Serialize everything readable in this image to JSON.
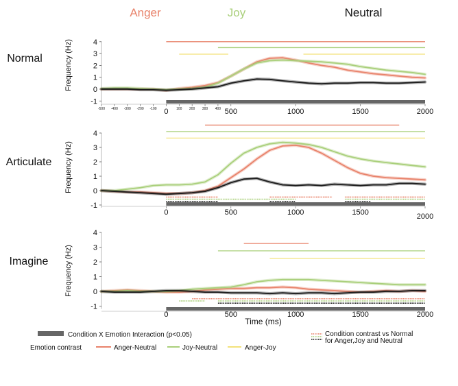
{
  "header": {
    "anger": {
      "label": "Anger",
      "color": "#e8826a"
    },
    "joy": {
      "label": "Joy",
      "color": "#a9cf7a"
    },
    "neutral": {
      "label": "Neutral",
      "color": "#111111"
    }
  },
  "x_axis_title": "Time (ms)",
  "legend": {
    "interaction": "Condition X Emotion Interaction (p<0.05)",
    "emotion_contrast": "Emotion contrast",
    "anger_neutral": "Anger-Neutral",
    "joy_neutral": "Joy-Neutral",
    "anger_joy": "Anger-Joy",
    "normal_contrast_line1": "Condition contrast vs Normal",
    "normal_contrast_line2": "for Anger,Joy and Neutral"
  },
  "colors": {
    "anger": "#e8826a",
    "joy": "#a9cf7a",
    "neutral": "#1a1a1a",
    "anger_joy": "#f3e27a",
    "interaction": "#666666"
  },
  "chart_data": [
    {
      "type": "line",
      "row_label": "Normal",
      "ylabel": "Frequency (Hz)",
      "xlim": [
        -500,
        2000
      ],
      "ylim": [
        -1,
        4
      ],
      "yticks": [
        "-1",
        "0",
        "1",
        "2",
        "3",
        "4"
      ],
      "xtick_labels": [
        "-500",
        "-400",
        "-300",
        "-200",
        "-100",
        "0",
        "100",
        "200",
        "300",
        "400",
        "500",
        "1000",
        "1500",
        "2000"
      ],
      "series": [
        {
          "name": "Anger",
          "x": [
            -500,
            -400,
            -300,
            -200,
            -100,
            0,
            100,
            200,
            300,
            400,
            500,
            600,
            700,
            800,
            900,
            1000,
            1100,
            1200,
            1300,
            1400,
            1500,
            1600,
            1700,
            1800,
            1900,
            2000
          ],
          "y": [
            0.0,
            0.0,
            0.0,
            0.0,
            0.0,
            -0.1,
            0.05,
            0.15,
            0.3,
            0.55,
            1.1,
            1.7,
            2.3,
            2.6,
            2.65,
            2.45,
            2.2,
            2.0,
            1.85,
            1.6,
            1.45,
            1.3,
            1.2,
            1.1,
            1.0,
            0.95
          ]
        },
        {
          "name": "Joy",
          "x": [
            -500,
            -400,
            -300,
            -200,
            -100,
            0,
            100,
            200,
            300,
            400,
            500,
            600,
            700,
            800,
            900,
            1000,
            1100,
            1200,
            1300,
            1400,
            1500,
            1600,
            1700,
            1800,
            1900,
            2000
          ],
          "y": [
            0.05,
            0.1,
            0.1,
            0.05,
            0.0,
            -0.05,
            0.0,
            0.05,
            0.15,
            0.5,
            1.1,
            1.7,
            2.2,
            2.4,
            2.45,
            2.4,
            2.35,
            2.3,
            2.2,
            2.1,
            1.9,
            1.75,
            1.6,
            1.5,
            1.4,
            1.25
          ]
        },
        {
          "name": "Neutral",
          "x": [
            -500,
            -400,
            -300,
            -200,
            -100,
            0,
            100,
            200,
            300,
            400,
            500,
            600,
            700,
            800,
            900,
            1000,
            1100,
            1200,
            1300,
            1400,
            1500,
            1600,
            1700,
            1800,
            1900,
            2000
          ],
          "y": [
            0.0,
            0.0,
            0.0,
            -0.05,
            -0.05,
            -0.1,
            -0.05,
            0.0,
            0.1,
            0.2,
            0.5,
            0.7,
            0.85,
            0.82,
            0.7,
            0.6,
            0.5,
            0.45,
            0.5,
            0.5,
            0.55,
            0.55,
            0.5,
            0.5,
            0.55,
            0.6
          ]
        }
      ],
      "sig_bars": [
        {
          "kind": "anger_neutral",
          "y": 4.0,
          "start": 0,
          "end": 2000
        },
        {
          "kind": "joy_neutral",
          "y": 3.5,
          "start": 400,
          "end": 2000
        },
        {
          "kind": "anger_joy",
          "y": 2.95,
          "start": 100,
          "end": 480
        },
        {
          "kind": "anger_joy",
          "y": 2.95,
          "start": 1060,
          "end": 2000
        }
      ],
      "dotted_bars": [],
      "interaction_bars": [
        {
          "start": 0,
          "end": 2000
        }
      ]
    },
    {
      "type": "line",
      "row_label": "Articulate",
      "ylabel": "Frequency (Hz)",
      "xlim": [
        -500,
        2000
      ],
      "ylim": [
        -1,
        4
      ],
      "yticks": [
        "-1",
        "0",
        "1",
        "2",
        "3",
        "4"
      ],
      "xtick_labels": [
        "0",
        "500",
        "1000",
        "1500",
        "2000"
      ],
      "series": [
        {
          "name": "Anger",
          "x": [
            -500,
            -400,
            -300,
            -200,
            -100,
            0,
            100,
            200,
            300,
            400,
            500,
            600,
            700,
            800,
            900,
            1000,
            1100,
            1200,
            1300,
            1400,
            1500,
            1600,
            1700,
            1800,
            1900,
            2000
          ],
          "y": [
            0.0,
            -0.05,
            -0.1,
            -0.1,
            -0.15,
            -0.2,
            -0.2,
            -0.15,
            0.0,
            0.3,
            0.9,
            1.5,
            2.2,
            2.8,
            3.1,
            3.15,
            3.0,
            2.6,
            2.1,
            1.6,
            1.2,
            1.0,
            0.9,
            0.85,
            0.8,
            0.75
          ]
        },
        {
          "name": "Joy",
          "x": [
            -500,
            -400,
            -300,
            -200,
            -100,
            0,
            100,
            200,
            300,
            400,
            500,
            600,
            700,
            800,
            900,
            1000,
            1100,
            1200,
            1300,
            1400,
            1500,
            1600,
            1700,
            1800,
            1900,
            2000
          ],
          "y": [
            0.0,
            0.0,
            0.1,
            0.2,
            0.35,
            0.4,
            0.4,
            0.45,
            0.6,
            1.1,
            1.9,
            2.6,
            3.0,
            3.25,
            3.35,
            3.3,
            3.2,
            3.0,
            2.7,
            2.4,
            2.2,
            2.05,
            1.95,
            1.85,
            1.75,
            1.65
          ]
        },
        {
          "name": "Neutral",
          "x": [
            -500,
            -400,
            -300,
            -200,
            -100,
            0,
            100,
            200,
            300,
            400,
            500,
            600,
            700,
            800,
            900,
            1000,
            1100,
            1200,
            1300,
            1400,
            1500,
            1600,
            1700,
            1800,
            1900,
            2000
          ],
          "y": [
            0.0,
            -0.05,
            -0.1,
            -0.15,
            -0.2,
            -0.25,
            -0.2,
            -0.15,
            -0.05,
            0.2,
            0.55,
            0.8,
            0.85,
            0.6,
            0.4,
            0.35,
            0.4,
            0.35,
            0.45,
            0.4,
            0.35,
            0.4,
            0.4,
            0.5,
            0.5,
            0.45
          ]
        }
      ],
      "sig_bars": [
        {
          "kind": "anger_neutral",
          "y": 4.55,
          "start": 300,
          "end": 1800
        },
        {
          "kind": "joy_neutral",
          "y": 4.1,
          "start": 0,
          "end": 2000
        },
        {
          "kind": "anger_joy",
          "y": 3.65,
          "start": 0,
          "end": 2000
        }
      ],
      "dotted_bars": [
        {
          "color": "#e8826a",
          "y": -0.45,
          "start": 0,
          "end": 400
        },
        {
          "color": "#e8826a",
          "y": -0.45,
          "start": 800,
          "end": 1280
        },
        {
          "color": "#e8826a",
          "y": -0.45,
          "start": 1380,
          "end": 2000
        },
        {
          "color": "#a9cf7a",
          "y": -0.6,
          "start": 0,
          "end": 1000
        },
        {
          "color": "#a9cf7a",
          "y": -0.6,
          "start": 1380,
          "end": 2000
        },
        {
          "color": "#1a1a1a",
          "y": -0.75,
          "start": 0,
          "end": 400
        },
        {
          "color": "#1a1a1a",
          "y": -0.75,
          "start": 800,
          "end": 1000
        },
        {
          "color": "#1a1a1a",
          "y": -0.75,
          "start": 1380,
          "end": 1580
        }
      ],
      "interaction_bars": [
        {
          "start": 0,
          "end": 2000
        }
      ]
    },
    {
      "type": "line",
      "row_label": "Imagine",
      "ylabel": "Frequency (Hz)",
      "xlim": [
        -500,
        2000
      ],
      "ylim": [
        -1,
        4
      ],
      "yticks": [
        "-1",
        "0",
        "1",
        "2",
        "3",
        "4"
      ],
      "xtick_labels": [
        "0",
        "500",
        "1000",
        "1500",
        "2000"
      ],
      "series": [
        {
          "name": "Anger",
          "x": [
            -500,
            -400,
            -300,
            -200,
            -100,
            0,
            100,
            200,
            300,
            400,
            500,
            600,
            700,
            800,
            900,
            1000,
            1100,
            1200,
            1300,
            1400,
            1500,
            1600,
            1700,
            1800,
            1900,
            2000
          ],
          "y": [
            0.0,
            0.05,
            0.1,
            0.05,
            0.0,
            -0.05,
            -0.05,
            0.0,
            0.1,
            0.15,
            0.2,
            0.2,
            0.25,
            0.25,
            0.3,
            0.25,
            0.15,
            0.1,
            0.05,
            0.0,
            -0.05,
            0.0,
            0.05,
            0.0,
            0.05,
            0.0
          ]
        },
        {
          "name": "Joy",
          "x": [
            -500,
            -400,
            -300,
            -200,
            -100,
            0,
            100,
            200,
            300,
            400,
            500,
            600,
            700,
            800,
            900,
            1000,
            1100,
            1200,
            1300,
            1400,
            1500,
            1600,
            1700,
            1800,
            1900,
            2000
          ],
          "y": [
            0.0,
            0.0,
            0.05,
            0.0,
            0.0,
            0.0,
            0.05,
            0.15,
            0.2,
            0.25,
            0.3,
            0.45,
            0.65,
            0.75,
            0.8,
            0.8,
            0.8,
            0.75,
            0.7,
            0.65,
            0.6,
            0.55,
            0.5,
            0.45,
            0.45,
            0.45
          ]
        },
        {
          "name": "Neutral",
          "x": [
            -500,
            -400,
            -300,
            -200,
            -100,
            0,
            100,
            200,
            300,
            400,
            500,
            600,
            700,
            800,
            900,
            1000,
            1100,
            1200,
            1300,
            1400,
            1500,
            1600,
            1700,
            1800,
            1900,
            2000
          ],
          "y": [
            0.0,
            -0.05,
            -0.05,
            -0.05,
            0.0,
            0.05,
            0.05,
            0.0,
            -0.05,
            -0.05,
            -0.1,
            -0.1,
            -0.1,
            -0.15,
            -0.1,
            -0.15,
            -0.1,
            -0.1,
            -0.15,
            -0.1,
            -0.05,
            -0.05,
            0.0,
            0.0,
            0.05,
            0.05
          ]
        }
      ],
      "sig_bars": [
        {
          "kind": "anger_neutral",
          "y": 3.25,
          "start": 600,
          "end": 1100
        },
        {
          "kind": "joy_neutral",
          "y": 2.75,
          "start": 400,
          "end": 2000
        },
        {
          "kind": "anger_joy",
          "y": 2.25,
          "start": 800,
          "end": 2000
        }
      ],
      "dotted_bars": [
        {
          "color": "#e8826a",
          "y": -0.5,
          "start": 200,
          "end": 2000
        },
        {
          "color": "#a9cf7a",
          "y": -0.65,
          "start": 100,
          "end": 300
        },
        {
          "color": "#a9cf7a",
          "y": -0.65,
          "start": 400,
          "end": 2000
        },
        {
          "color": "#1a1a1a",
          "y": -0.8,
          "start": 400,
          "end": 2000
        }
      ],
      "interaction_bars": [
        {
          "start": 0,
          "end": 2000
        }
      ]
    }
  ]
}
